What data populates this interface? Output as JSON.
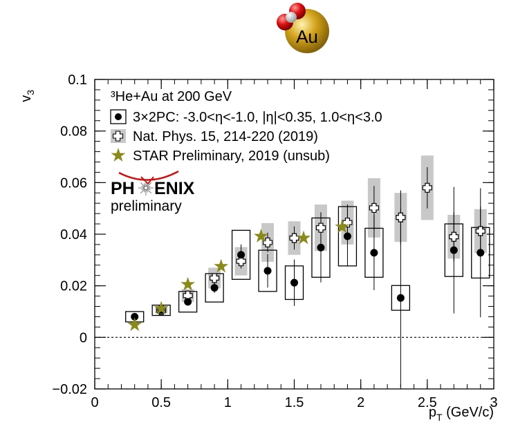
{
  "chart_data": {
    "type": "scatter",
    "title": "³He+Au at 200 GeV",
    "xlabel": "p",
    "xlabel_sub": "T",
    "xlabel_unit": " (GeV/c)",
    "ylabel": "v",
    "ylabel_sub": "3",
    "xlim": [
      0,
      3
    ],
    "ylim": [
      -0.02,
      0.1
    ],
    "x_ticks": [
      {
        "v": 0,
        "label": "0"
      },
      {
        "v": 0.5,
        "label": "0.5"
      },
      {
        "v": 1,
        "label": "1"
      },
      {
        "v": 1.5,
        "label": "1.5"
      },
      {
        "v": 2,
        "label": "2"
      },
      {
        "v": 2.5,
        "label": "2.5"
      },
      {
        "v": 3,
        "label": "3"
      }
    ],
    "y_ticks": [
      {
        "v": -0.02,
        "label": "−0.02"
      },
      {
        "v": 0,
        "label": "0"
      },
      {
        "v": 0.02,
        "label": "0.02"
      },
      {
        "v": 0.04,
        "label": "0.04"
      },
      {
        "v": 0.06,
        "label": "0.06"
      },
      {
        "v": 0.08,
        "label": "0.08"
      },
      {
        "v": 0.1,
        "label": "0.1"
      }
    ],
    "zero_line": true,
    "grid": false,
    "legend_position": "top-left",
    "series": [
      {
        "name": "3×2PC: -3.0<η<-1.0, |η|<0.35, 1.0<η<3.0",
        "marker": "filled-circle",
        "syst_style": "open-box",
        "points": [
          {
            "x": 0.3,
            "y": 0.008,
            "stat": 0.0006,
            "syst": 0.002
          },
          {
            "x": 0.5,
            "y": 0.0105,
            "stat": 0.0008,
            "syst": 0.002
          },
          {
            "x": 0.7,
            "y": 0.0138,
            "stat": 0.0012,
            "syst": 0.004
          },
          {
            "x": 0.9,
            "y": 0.0192,
            "stat": 0.002,
            "syst": 0.0055
          },
          {
            "x": 1.1,
            "y": 0.032,
            "stat": 0.004,
            "syst": 0.0095
          },
          {
            "x": 1.3,
            "y": 0.0258,
            "stat": 0.0065,
            "syst": 0.008
          },
          {
            "x": 1.5,
            "y": 0.0212,
            "stat": 0.009,
            "syst": 0.0065
          },
          {
            "x": 1.7,
            "y": 0.0348,
            "stat": 0.0135,
            "syst": 0.0115
          },
          {
            "x": 1.9,
            "y": 0.0392,
            "stat": 0.0115,
            "syst": 0.0115
          },
          {
            "x": 2.1,
            "y": 0.0328,
            "stat": 0.0145,
            "syst": 0.0095
          },
          {
            "x": 2.3,
            "y": 0.0153,
            "stat": 0.0345,
            "syst": 0.0048
          },
          {
            "x": 2.7,
            "y": 0.0338,
            "stat": 0.0245,
            "syst": 0.0102
          },
          {
            "x": 2.9,
            "y": 0.0328,
            "stat": 0.025,
            "syst": 0.0098
          }
        ]
      },
      {
        "name": "Nat. Phys. 15, 214-220 (2019)",
        "marker": "open-cross",
        "syst_style": "gray-band",
        "points": [
          {
            "x": 0.5,
            "y": 0.0105,
            "stat": 0.0005,
            "syst": 0.0012
          },
          {
            "x": 0.7,
            "y": 0.0162,
            "stat": 0.001,
            "syst": 0.0025
          },
          {
            "x": 0.9,
            "y": 0.023,
            "stat": 0.0018,
            "syst": 0.004
          },
          {
            "x": 1.1,
            "y": 0.0295,
            "stat": 0.0028,
            "syst": 0.0055
          },
          {
            "x": 1.3,
            "y": 0.0368,
            "stat": 0.0038,
            "syst": 0.0075
          },
          {
            "x": 1.5,
            "y": 0.0385,
            "stat": 0.0045,
            "syst": 0.0065
          },
          {
            "x": 1.7,
            "y": 0.0425,
            "stat": 0.006,
            "syst": 0.009
          },
          {
            "x": 1.9,
            "y": 0.0445,
            "stat": 0.007,
            "syst": 0.0085
          },
          {
            "x": 2.1,
            "y": 0.0502,
            "stat": 0.0085,
            "syst": 0.0115
          },
          {
            "x": 2.3,
            "y": 0.0465,
            "stat": 0.0105,
            "syst": 0.0095
          },
          {
            "x": 2.5,
            "y": 0.058,
            "stat": 0.008,
            "syst": 0.0125
          },
          {
            "x": 2.7,
            "y": 0.039,
            "stat": 0.0095,
            "syst": 0.0085
          },
          {
            "x": 2.9,
            "y": 0.0412,
            "stat": 0.0095,
            "syst": 0.0085
          }
        ]
      },
      {
        "name": "STAR Preliminary, 2019 (unsub)",
        "marker": "star",
        "color": "#8a8a1a",
        "points": [
          {
            "x": 0.3,
            "y": 0.0048
          },
          {
            "x": 0.5,
            "y": 0.0112
          },
          {
            "x": 0.7,
            "y": 0.0205
          },
          {
            "x": 0.95,
            "y": 0.0275
          },
          {
            "x": 1.25,
            "y": 0.0392
          },
          {
            "x": 1.57,
            "y": 0.0385
          },
          {
            "x": 1.86,
            "y": 0.0428
          }
        ]
      }
    ]
  },
  "logo": {
    "text_left": "PH",
    "text_right": "ENIX",
    "subtitle": "preliminary",
    "accent_color": "#cc1111"
  },
  "nucleus_icon": {
    "label": "Au",
    "gold_color": "#d4a41c",
    "proton_color": "#dd1111"
  }
}
